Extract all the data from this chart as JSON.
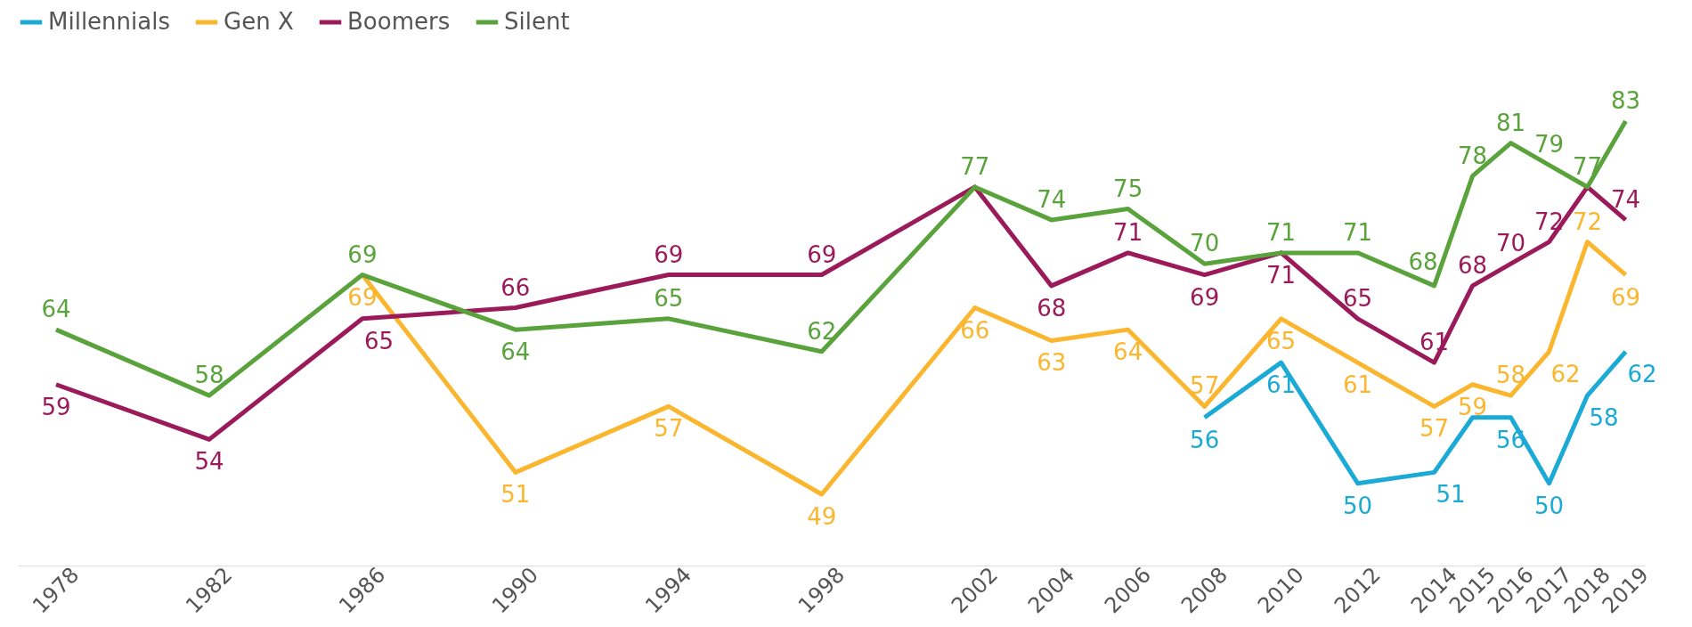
{
  "chart_data": {
    "type": "line",
    "x": [
      1978,
      1982,
      1986,
      1990,
      1994,
      1998,
      2002,
      2004,
      2006,
      2008,
      2010,
      2012,
      2014,
      2015,
      2016,
      2017,
      2018,
      2019
    ],
    "xlim": [
      1977,
      2019.5
    ],
    "xticks": [
      1978,
      1982,
      1986,
      1990,
      1994,
      1998,
      2002,
      2004,
      2006,
      2008,
      2010,
      2012,
      2014,
      2015,
      2016,
      2017,
      2018,
      2019
    ],
    "tick_labels": "x",
    "grid": false,
    "legend": "top",
    "marker": "none",
    "line_style": "solid",
    "series": [
      {
        "name": "Millennials",
        "color": "#1ba9d6",
        "values": [
          null,
          null,
          null,
          null,
          null,
          null,
          null,
          null,
          null,
          56,
          61,
          50,
          51,
          56,
          56,
          50,
          58,
          62
        ],
        "value_labels": [
          null,
          null,
          null,
          null,
          null,
          null,
          null,
          null,
          null,
          "56",
          "61",
          "50",
          "51",
          null,
          "56",
          "50",
          "58",
          "62"
        ]
      },
      {
        "name": "Gen X",
        "color": "#fbb62f",
        "values": [
          null,
          null,
          69,
          51,
          57,
          49,
          66,
          63,
          64,
          57,
          65,
          61,
          57,
          59,
          58,
          62,
          72,
          69
        ],
        "value_labels": [
          null,
          null,
          "69",
          "51",
          "57",
          "49",
          "66",
          "63",
          "64",
          "57",
          "65",
          "61",
          "57",
          "59",
          "58",
          "62",
          "72",
          "69"
        ]
      },
      {
        "name": "Boomers",
        "color": "#9b1b5a",
        "values": [
          59,
          54,
          65,
          66,
          69,
          69,
          77,
          68,
          71,
          69,
          71,
          65,
          61,
          68,
          70,
          72,
          77,
          74
        ],
        "value_labels": [
          "59",
          "54",
          "65",
          "66",
          "69",
          "69",
          null,
          "68",
          "71",
          "69",
          "71",
          "65",
          "61",
          "68",
          "70",
          "72",
          null,
          "74"
        ]
      },
      {
        "name": "Silent",
        "color": "#5aa33c",
        "values": [
          64,
          58,
          69,
          64,
          65,
          62,
          77,
          74,
          75,
          70,
          71,
          71,
          68,
          78,
          81,
          79,
          77,
          83
        ],
        "value_labels": [
          "64",
          "58",
          "69",
          "64",
          "65",
          "62",
          "77",
          "74",
          "75",
          "70",
          "71",
          "71",
          "68",
          "78",
          "81",
          "79",
          "77",
          "83"
        ]
      }
    ]
  }
}
